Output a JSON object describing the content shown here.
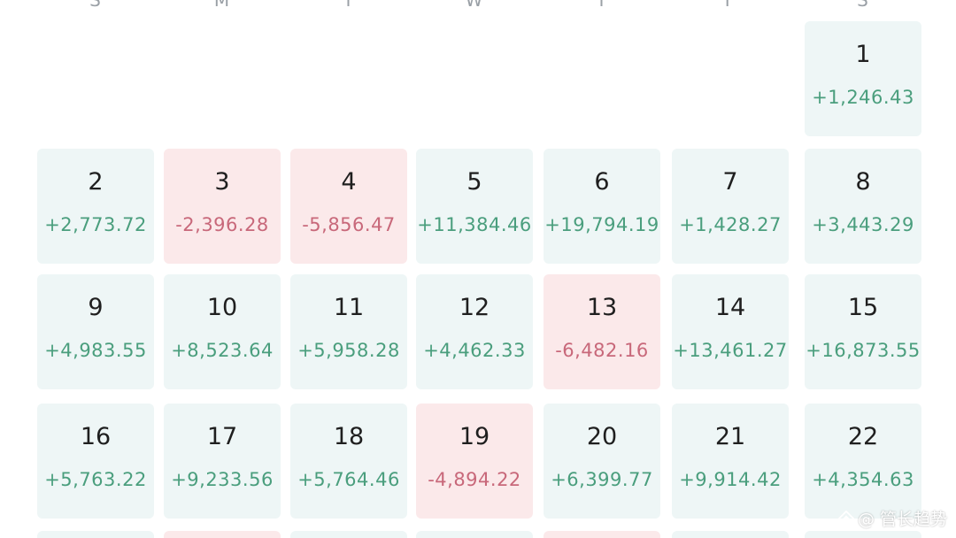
{
  "calendar": {
    "weekdays": [
      "S",
      "M",
      "T",
      "W",
      "T",
      "F",
      "S"
    ],
    "days": [
      {
        "day": "1",
        "value": "+1,246.43",
        "trend": "pos"
      },
      {
        "day": "2",
        "value": "+2,773.72",
        "trend": "pos"
      },
      {
        "day": "3",
        "value": "-2,396.28",
        "trend": "neg"
      },
      {
        "day": "4",
        "value": "-5,856.47",
        "trend": "neg"
      },
      {
        "day": "5",
        "value": "+11,384.46",
        "trend": "pos"
      },
      {
        "day": "6",
        "value": "+19,794.19",
        "trend": "pos"
      },
      {
        "day": "7",
        "value": "+1,428.27",
        "trend": "pos"
      },
      {
        "day": "8",
        "value": "+3,443.29",
        "trend": "pos"
      },
      {
        "day": "9",
        "value": "+4,983.55",
        "trend": "pos"
      },
      {
        "day": "10",
        "value": "+8,523.64",
        "trend": "pos"
      },
      {
        "day": "11",
        "value": "+5,958.28",
        "trend": "pos"
      },
      {
        "day": "12",
        "value": "+4,462.33",
        "trend": "pos"
      },
      {
        "day": "13",
        "value": "-6,482.16",
        "trend": "neg"
      },
      {
        "day": "14",
        "value": "+13,461.27",
        "trend": "pos"
      },
      {
        "day": "15",
        "value": "+16,873.55",
        "trend": "pos"
      },
      {
        "day": "16",
        "value": "+5,763.22",
        "trend": "pos"
      },
      {
        "day": "17",
        "value": "+9,233.56",
        "trend": "pos"
      },
      {
        "day": "18",
        "value": "+5,764.46",
        "trend": "pos"
      },
      {
        "day": "19",
        "value": "-4,894.22",
        "trend": "neg"
      },
      {
        "day": "20",
        "value": "+6,399.77",
        "trend": "pos"
      },
      {
        "day": "21",
        "value": "+9,914.42",
        "trend": "pos"
      },
      {
        "day": "22",
        "value": "+4,354.63",
        "trend": "pos"
      }
    ],
    "next_row_trends": [
      "pos",
      "neg",
      "pos",
      "pos",
      "neg",
      "pos",
      "pos"
    ]
  },
  "colors": {
    "positive_bg": "#eef6f6",
    "negative_bg": "#fbe9ea",
    "positive_text": "#4a9e7d",
    "negative_text": "#c8687a"
  },
  "watermark": {
    "icon": "diamond-logo-icon",
    "text": "@ 管长趋势"
  }
}
